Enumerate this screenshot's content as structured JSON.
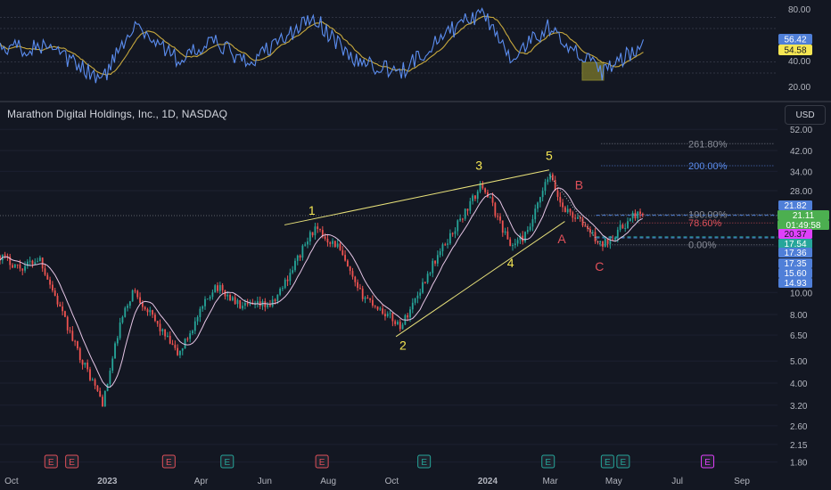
{
  "header": {
    "title": "Marathon Digital Holdings, Inc., 1D, NASDAQ",
    "currency": "USD"
  },
  "rsi": {
    "levels": [
      80,
      70,
      40,
      30
    ],
    "ticks": [
      "80.00",
      "40.00",
      "20.00"
    ],
    "current_labels": [
      {
        "text": "56.42",
        "bg": "#4f7fd8",
        "fg": "#ffffff",
        "value": 56.42
      },
      {
        "text": "54.58",
        "bg": "#f5e653",
        "fg": "#131722",
        "value": 54.58
      }
    ],
    "colors": {
      "rsi": "#5b8def",
      "ma": "#c7a83d",
      "highlight": "#6b6a2a"
    }
  },
  "price_axis": {
    "ticks": [
      "52.00",
      "42.00",
      "34.00",
      "28.00",
      "16.00",
      "10.00",
      "8.00",
      "6.50",
      "5.00",
      "4.00",
      "3.20",
      "2.60",
      "2.15",
      "1.80"
    ]
  },
  "price_labels": [
    {
      "text": "21.82",
      "bg": "#4f7fd8",
      "fg": "#ffffff"
    },
    {
      "text": "21.11",
      "bg": "#4caf50",
      "fg": "#ffffff"
    },
    {
      "text": "01:49:58",
      "bg": "#4caf50",
      "fg": "#ffffff"
    },
    {
      "text": "20.37",
      "bg": "#e040fb",
      "fg": "#131722"
    },
    {
      "text": "17.54",
      "bg": "#26a69a",
      "fg": "#ffffff"
    },
    {
      "text": "17.36",
      "bg": "#4f7fd8",
      "fg": "#ffffff"
    },
    {
      "text": "17.35",
      "bg": "#4f7fd8",
      "fg": "#ffffff"
    },
    {
      "text": "15.60",
      "bg": "#4f7fd8",
      "fg": "#ffffff"
    },
    {
      "text": "14.93",
      "bg": "#4f7fd8",
      "fg": "#ffffff"
    }
  ],
  "fib_labels": [
    {
      "text": "261.80%",
      "color": "#8a8e99"
    },
    {
      "text": "200.00%",
      "color": "#5b8def"
    },
    {
      "text": "100.00%",
      "color": "#8a8e99"
    },
    {
      "text": "78.60%",
      "color": "#e0505a"
    },
    {
      "text": "0.00%",
      "color": "#8a8e99"
    }
  ],
  "wave_labels": [
    {
      "text": "1",
      "color": "#f5e653"
    },
    {
      "text": "2",
      "color": "#f5e653"
    },
    {
      "text": "3",
      "color": "#f5e653"
    },
    {
      "text": "4",
      "color": "#f5e653"
    },
    {
      "text": "5",
      "color": "#f5e653"
    },
    {
      "text": "A",
      "color": "#e0505a"
    },
    {
      "text": "B",
      "color": "#e0505a"
    },
    {
      "text": "C",
      "color": "#e0505a"
    }
  ],
  "time_axis": {
    "labels": [
      "Oct",
      "2023",
      "Apr",
      "Jun",
      "Aug",
      "Oct",
      "2024",
      "Mar",
      "May",
      "Jul",
      "Sep"
    ]
  },
  "event_markers": [
    {
      "text": "E",
      "color": "#e0505a"
    },
    {
      "text": "E",
      "color": "#e0505a"
    },
    {
      "text": "E",
      "color": "#e0505a"
    },
    {
      "text": "E",
      "color": "#26a69a"
    },
    {
      "text": "E",
      "color": "#e0505a"
    },
    {
      "text": "E",
      "color": "#26a69a"
    },
    {
      "text": "E",
      "color": "#26a69a"
    },
    {
      "text": "E",
      "color": "#26a69a"
    },
    {
      "text": "E",
      "color": "#26a69a"
    },
    {
      "text": "E",
      "color": "#e040fb"
    }
  ],
  "chart_data": {
    "type": "candlestick",
    "title": "Marathon Digital Holdings, Inc., 1D, NASDAQ",
    "y_scale": "log",
    "x_range": [
      "2022-09-20",
      "2024-09-30"
    ],
    "y_range": [
      1.7,
      56
    ],
    "colors": {
      "up": "#26a69a",
      "down": "#ef5350",
      "ma": "#e6c6e6"
    },
    "pivots": [
      {
        "date": "2022-09-20",
        "price": 14.5
      },
      {
        "date": "2022-10-10",
        "price": 12.8
      },
      {
        "date": "2022-10-28",
        "price": 14.2
      },
      {
        "date": "2022-11-30",
        "price": 6.0
      },
      {
        "date": "2022-12-28",
        "price": 3.25
      },
      {
        "date": "2023-01-13",
        "price": 7.2
      },
      {
        "date": "2023-01-26",
        "price": 10.3
      },
      {
        "date": "2023-03-10",
        "price": 5.3
      },
      {
        "date": "2023-04-14",
        "price": 10.8
      },
      {
        "date": "2023-05-10",
        "price": 8.6
      },
      {
        "date": "2023-06-09",
        "price": 8.9
      },
      {
        "date": "2023-07-18",
        "price": 19.0
      },
      {
        "date": "2023-08-10",
        "price": 16.0
      },
      {
        "date": "2023-08-29",
        "price": 10.2
      },
      {
        "date": "2023-10-10",
        "price": 7.1
      },
      {
        "date": "2023-11-10",
        "price": 13.5
      },
      {
        "date": "2023-12-27",
        "price": 30.0
      },
      {
        "date": "2024-01-23",
        "price": 16.0
      },
      {
        "date": "2024-02-08",
        "price": 18.0
      },
      {
        "date": "2024-02-29",
        "price": 33.0
      },
      {
        "date": "2024-03-12",
        "price": 24.0
      },
      {
        "date": "2024-04-04",
        "price": 19.5
      },
      {
        "date": "2024-04-19",
        "price": 16.0
      },
      {
        "date": "2024-05-15",
        "price": 20.5
      },
      {
        "date": "2024-05-22",
        "price": 22.2
      },
      {
        "date": "2024-05-31",
        "price": 21.11
      }
    ],
    "wave_points": [
      {
        "label": "1",
        "date": "2023-07-18",
        "price": 19.0
      },
      {
        "label": "2",
        "date": "2023-10-10",
        "price": 7.1
      },
      {
        "label": "3",
        "date": "2023-12-27",
        "price": 30.0
      },
      {
        "label": "4",
        "date": "2024-01-23",
        "price": 16.0
      },
      {
        "label": "5",
        "date": "2024-02-29",
        "price": 33.0
      },
      {
        "label": "A",
        "date": "2024-03-19",
        "price": 19.0
      },
      {
        "label": "B",
        "date": "2024-03-27",
        "price": 25.0
      },
      {
        "label": "C",
        "date": "2024-04-19",
        "price": 16.0
      }
    ],
    "price_levels": [
      21.82,
      21.11,
      20.37,
      17.54,
      17.36,
      17.35,
      15.6,
      14.93
    ],
    "fib_levels": [
      {
        "label": "261.80%",
        "price": 45.0
      },
      {
        "label": "200.00%",
        "price": 36.0
      },
      {
        "label": "100.00%",
        "price": 22.0
      },
      {
        "label": "78.60%",
        "price": 20.2
      },
      {
        "label": "0.00%",
        "price": 16.2
      }
    ],
    "rsi": {
      "name": "RSI",
      "range": [
        10,
        90
      ],
      "levels": [
        80,
        70,
        40,
        30
      ],
      "last_rsi": 56.42,
      "last_ma": 54.58,
      "pivots": [
        {
          "date": "2022-09-20",
          "value": 50
        },
        {
          "date": "2022-10-28",
          "value": 55
        },
        {
          "date": "2022-12-28",
          "value": 24
        },
        {
          "date": "2023-01-26",
          "value": 75
        },
        {
          "date": "2023-03-10",
          "value": 42
        },
        {
          "date": "2023-04-14",
          "value": 58
        },
        {
          "date": "2023-05-15",
          "value": 38
        },
        {
          "date": "2023-07-18",
          "value": 80
        },
        {
          "date": "2023-08-25",
          "value": 42
        },
        {
          "date": "2023-10-10",
          "value": 30
        },
        {
          "date": "2023-11-15",
          "value": 62
        },
        {
          "date": "2023-12-27",
          "value": 85
        },
        {
          "date": "2024-01-23",
          "value": 45
        },
        {
          "date": "2024-02-29",
          "value": 72
        },
        {
          "date": "2024-04-19",
          "value": 30
        },
        {
          "date": "2024-05-31",
          "value": 56.42
        }
      ]
    }
  }
}
